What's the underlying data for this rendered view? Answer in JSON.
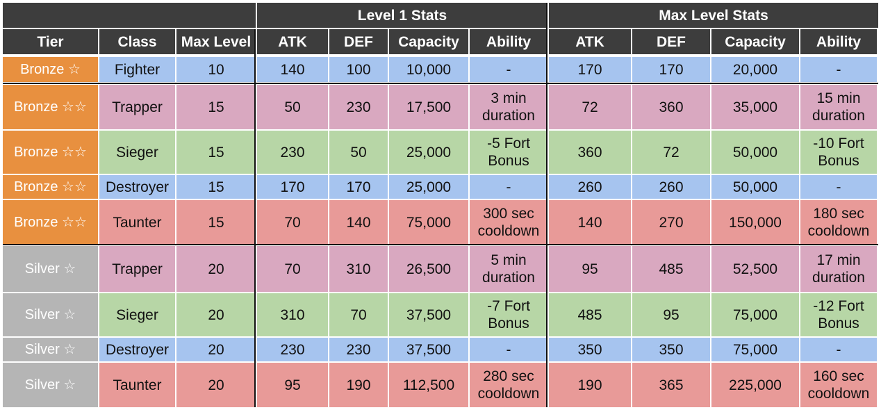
{
  "header": {
    "group_level1": "Level 1 Stats",
    "group_max": "Max Level Stats",
    "columns": [
      "Tier",
      "Class",
      "Max Level",
      "ATK",
      "DEF",
      "Capacity",
      "Ability",
      "ATK",
      "DEF",
      "Capacity",
      "Ability"
    ]
  },
  "colors": {
    "header_bg": "#3d3d3d",
    "bronze": "#e8903f",
    "silver": "#b5b5b5",
    "Fighter": "#a6c4ef",
    "Destroyer": "#a6c4ef",
    "Trapper": "#d9a8c0",
    "Sieger": "#b7d6a6",
    "Taunter": "#e89a98"
  },
  "rows": [
    {
      "tier": "Bronze ☆",
      "tier_group": "bronze",
      "class": "Fighter",
      "max_level": "10",
      "l1_atk": "140",
      "l1_def": "100",
      "l1_cap": "10,000",
      "l1_ability": "-",
      "max_atk": "170",
      "max_def": "170",
      "max_cap": "20,000",
      "max_ability": "-"
    },
    {
      "tier": "Bronze ☆☆",
      "tier_group": "bronze",
      "class": "Trapper",
      "max_level": "15",
      "l1_atk": "50",
      "l1_def": "230",
      "l1_cap": "17,500",
      "l1_ability": "3 min\nduration",
      "max_atk": "72",
      "max_def": "360",
      "max_cap": "35,000",
      "max_ability": "15 min\nduration"
    },
    {
      "tier": "Bronze ☆☆",
      "tier_group": "bronze",
      "class": "Sieger",
      "max_level": "15",
      "l1_atk": "230",
      "l1_def": "50",
      "l1_cap": "25,000",
      "l1_ability": "-5 Fort\nBonus",
      "max_atk": "360",
      "max_def": "72",
      "max_cap": "50,000",
      "max_ability": "-10 Fort\nBonus"
    },
    {
      "tier": "Bronze ☆☆",
      "tier_group": "bronze",
      "class": "Destroyer",
      "max_level": "15",
      "l1_atk": "170",
      "l1_def": "170",
      "l1_cap": "25,000",
      "l1_ability": "-",
      "max_atk": "260",
      "max_def": "260",
      "max_cap": "50,000",
      "max_ability": "-"
    },
    {
      "tier": "Bronze ☆☆",
      "tier_group": "bronze",
      "class": "Taunter",
      "max_level": "15",
      "l1_atk": "70",
      "l1_def": "140",
      "l1_cap": "75,000",
      "l1_ability": "300 sec\ncooldown",
      "max_atk": "140",
      "max_def": "270",
      "max_cap": "150,000",
      "max_ability": "180 sec\ncooldown"
    },
    {
      "tier": "Silver ☆",
      "tier_group": "silver",
      "class": "Trapper",
      "max_level": "20",
      "l1_atk": "70",
      "l1_def": "310",
      "l1_cap": "26,500",
      "l1_ability": "5 min\nduration",
      "max_atk": "95",
      "max_def": "485",
      "max_cap": "52,500",
      "max_ability": "17 min\nduration"
    },
    {
      "tier": "Silver ☆",
      "tier_group": "silver",
      "class": "Sieger",
      "max_level": "20",
      "l1_atk": "310",
      "l1_def": "70",
      "l1_cap": "37,500",
      "l1_ability": "-7 Fort\nBonus",
      "max_atk": "485",
      "max_def": "95",
      "max_cap": "75,000",
      "max_ability": "-12 Fort\nBonus"
    },
    {
      "tier": "Silver ☆",
      "tier_group": "silver",
      "class": "Destroyer",
      "max_level": "20",
      "l1_atk": "230",
      "l1_def": "230",
      "l1_cap": "37,500",
      "l1_ability": "-",
      "max_atk": "350",
      "max_def": "350",
      "max_cap": "75,000",
      "max_ability": "-"
    },
    {
      "tier": "Silver ☆",
      "tier_group": "silver",
      "class": "Taunter",
      "max_level": "20",
      "l1_atk": "95",
      "l1_def": "190",
      "l1_cap": "112,500",
      "l1_ability": "280 sec\ncooldown",
      "max_atk": "190",
      "max_def": "365",
      "max_cap": "225,000",
      "max_ability": "160 sec\ncooldown"
    }
  ]
}
